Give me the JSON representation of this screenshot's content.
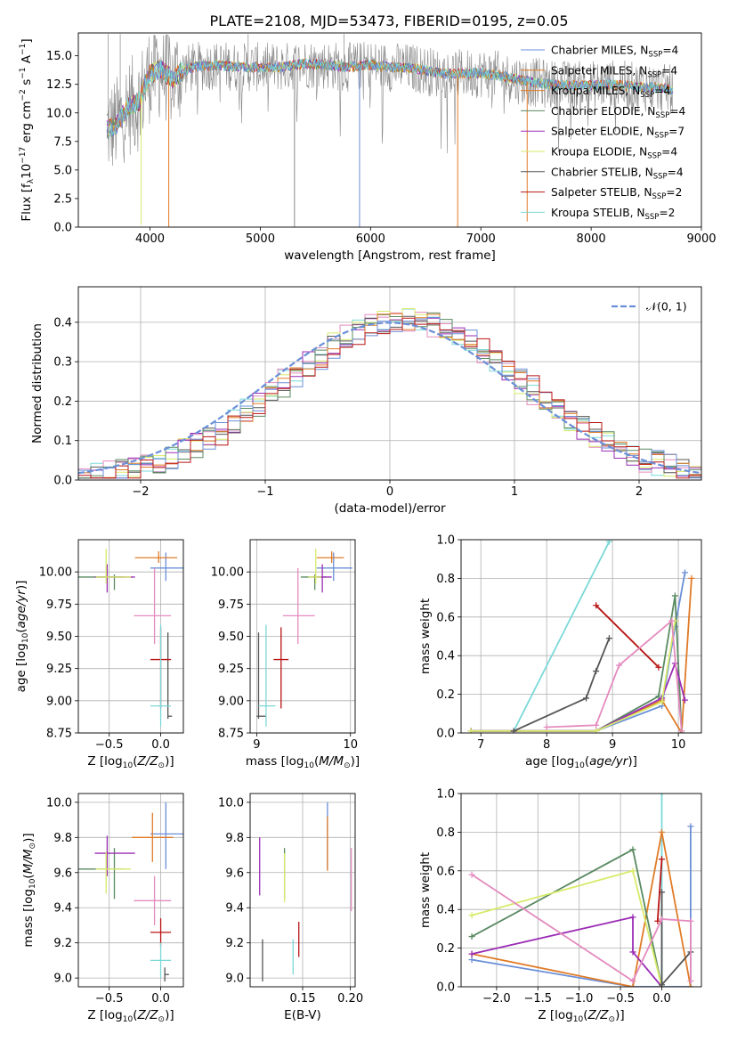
{
  "title": "PLATE=2108, MJD=53473, FIBERID=0195, z=0.05",
  "colors": [
    "#6a8fd8",
    "#e07b27",
    "#5a8a62",
    "#9b2db5",
    "#d8ea6a",
    "#555555",
    "#b81414",
    "#e48bbf",
    "#7bd8d8",
    "#888888"
  ],
  "chart_data": [
    {
      "id": "spectrum",
      "type": "line",
      "xlabel": "wavelength [Angstrom, rest frame]",
      "ylabel": "Flux [f_λ 10^-17 erg cm^-2 s^-1 A^-1]",
      "xlim": [
        3350,
        9000
      ],
      "ylim": [
        0,
        17
      ],
      "xticks": [
        4000,
        5000,
        6000,
        7000,
        8000,
        9000
      ],
      "yticks": [
        0.0,
        2.5,
        5.0,
        7.5,
        10.0,
        12.5,
        15.0
      ],
      "grid": false,
      "legend_position": "right",
      "legend": [
        {
          "label": "Chabrier MILES, N",
          "sub": "SSP",
          "suffix": "=4",
          "color": "#6a8fd8"
        },
        {
          "label": "Salpeter MILES, N",
          "sub": "SSP",
          "suffix": "=4",
          "color": "#e07b27"
        },
        {
          "label": "Kroupa MILES, N",
          "sub": "SSP",
          "suffix": "=4",
          "color": "#e07b27"
        },
        {
          "label": "Chabrier ELODIE, N",
          "sub": "SSP",
          "suffix": "=4",
          "color": "#5a8a62"
        },
        {
          "label": "Salpeter ELODIE, N",
          "sub": "SSP",
          "suffix": "=7",
          "color": "#9b2db5"
        },
        {
          "label": "Kroupa ELODIE, N",
          "sub": "SSP",
          "suffix": "=4",
          "color": "#d8ea6a"
        },
        {
          "label": "Chabrier STELIB, N",
          "sub": "SSP",
          "suffix": "=4",
          "color": "#555555"
        },
        {
          "label": "Salpeter STELIB, N",
          "sub": "SSP",
          "suffix": "=2",
          "color": "#b81414"
        },
        {
          "label": "Kroupa STELIB, N",
          "sub": "SSP",
          "suffix": "=2",
          "color": "#7bd8d8"
        }
      ],
      "series_shape": {
        "wavelength": [
          3600,
          3700,
          3800,
          3900,
          4000,
          4100,
          4200,
          4300,
          4400,
          4600,
          4800,
          5000,
          5200,
          5400,
          5600,
          5800,
          6000,
          6200,
          6400,
          6600,
          6800,
          7000,
          7200,
          7400,
          7600,
          7800,
          8000,
          8200,
          8400,
          8600,
          8750
        ],
        "flux": [
          8.5,
          9.0,
          10.5,
          11.0,
          13.5,
          13.8,
          13.0,
          13.7,
          14.0,
          14.2,
          14.0,
          14.0,
          14.0,
          14.3,
          14.2,
          14.0,
          14.2,
          14.0,
          13.9,
          13.5,
          13.4,
          13.5,
          13.2,
          12.8,
          12.5,
          12.4,
          12.4,
          12.5,
          12.3,
          12.2,
          12.0
        ]
      },
      "spikes": [
        {
          "x": 3920,
          "y": 0.2,
          "color": "#d8ea6a"
        },
        {
          "x": 4170,
          "y": 0.0,
          "color": "#e07b27"
        },
        {
          "x": 5310,
          "y": 0.0,
          "color": "#888888"
        },
        {
          "x": 5900,
          "y": 0.0,
          "color": "#6a8fd8"
        },
        {
          "x": 6790,
          "y": 0.0,
          "color": "#e07b27"
        },
        {
          "x": 7420,
          "y": 0.5,
          "color": "#e07b27"
        }
      ]
    },
    {
      "id": "residuals",
      "type": "step",
      "xlabel": "(data-model)/error",
      "ylabel": "Normed distribution",
      "xlim": [
        -2.5,
        2.5
      ],
      "ylim": [
        0,
        0.49
      ],
      "xticks": [
        -2,
        -1,
        0,
        1,
        2
      ],
      "yticks": [
        0.0,
        0.1,
        0.2,
        0.3,
        0.4
      ],
      "grid": true,
      "legend_position": "top-right",
      "legend": [
        {
          "label": "𝒩(0, 1)",
          "color": "#6a8fd8",
          "dashed": true
        }
      ],
      "bins_from": -2.5,
      "bin_width": 0.1
    },
    {
      "id": "age_vs_Z",
      "type": "errorbar",
      "xlabel": "Z [log10(Z/Z⊙)]",
      "ylabel": "age [log10(age/yr)]",
      "xlim": [
        -0.8,
        0.22
      ],
      "ylim": [
        8.75,
        10.25
      ],
      "xticks": [
        -0.5,
        0.0
      ],
      "yticks": [
        8.75,
        9.0,
        9.25,
        9.5,
        9.75,
        10.0
      ],
      "grid": true,
      "points": [
        {
          "x": 0.05,
          "y": 10.03,
          "xe": [
            0.15,
            0.18
          ],
          "ye": [
            0.1,
            0.12
          ],
          "color": "#6a8fd8"
        },
        {
          "x": -0.02,
          "y": 10.11,
          "xe": [
            0.23,
            0.18
          ],
          "ye": [
            0.04,
            0.05
          ],
          "color": "#e07b27"
        },
        {
          "x": -0.45,
          "y": 9.96,
          "xe": [
            0.35,
            0.1
          ],
          "ye": [
            0.1,
            0.02
          ],
          "color": "#5a8a62"
        },
        {
          "x": -0.52,
          "y": 9.96,
          "xe": [
            0.12,
            0.27
          ],
          "ye": [
            0.12,
            0.1
          ],
          "color": "#9b2db5"
        },
        {
          "x": -0.53,
          "y": 9.96,
          "xe": [
            0.1,
            0.24
          ],
          "ye": [
            0.05,
            0.22
          ],
          "color": "#d8ea6a"
        },
        {
          "x": 0.07,
          "y": 8.88,
          "xe": [
            0.0,
            0.04
          ],
          "ye": [
            0.02,
            0.65
          ],
          "color": "#555555"
        },
        {
          "x": 0.0,
          "y": 9.32,
          "xe": [
            0.1,
            0.1
          ],
          "ye": [
            0.38,
            0.25
          ],
          "color": "#b81414"
        },
        {
          "x": -0.06,
          "y": 9.66,
          "xe": [
            0.2,
            0.16
          ],
          "ye": [
            0.22,
            0.37
          ],
          "color": "#e48bbf"
        },
        {
          "x": 0.0,
          "y": 8.96,
          "xe": [
            0.1,
            0.1
          ],
          "ye": [
            0.16,
            0.63
          ],
          "color": "#7bd8d8"
        }
      ]
    },
    {
      "id": "age_vs_mass",
      "type": "errorbar",
      "xlabel": "mass [log10(M/M⊙)]",
      "ylabel": "",
      "xlim": [
        8.93,
        10.05
      ],
      "ylim": [
        8.75,
        10.25
      ],
      "xticks": [
        9,
        10
      ],
      "yticks": [
        8.75,
        9.0,
        9.25,
        9.5,
        9.75,
        10.0
      ],
      "grid": true,
      "points": [
        {
          "x": 9.82,
          "y": 10.03,
          "xe": [
            0.18,
            0.2
          ],
          "ye": [
            0.1,
            0.12
          ],
          "color": "#6a8fd8"
        },
        {
          "x": 9.8,
          "y": 10.11,
          "xe": [
            0.16,
            0.13
          ],
          "ye": [
            0.04,
            0.05
          ],
          "color": "#e07b27"
        },
        {
          "x": 9.62,
          "y": 9.96,
          "xe": [
            0.15,
            0.12
          ],
          "ye": [
            0.1,
            0.02
          ],
          "color": "#5a8a62"
        },
        {
          "x": 9.7,
          "y": 9.96,
          "xe": [
            0.1,
            0.1
          ],
          "ye": [
            0.12,
            0.1
          ],
          "color": "#9b2db5"
        },
        {
          "x": 9.63,
          "y": 9.96,
          "xe": [
            0.08,
            0.06
          ],
          "ye": [
            0.05,
            0.22
          ],
          "color": "#d8ea6a"
        },
        {
          "x": 9.02,
          "y": 8.88,
          "xe": [
            0.02,
            0.08
          ],
          "ye": [
            0.02,
            0.65
          ],
          "color": "#555555"
        },
        {
          "x": 9.26,
          "y": 9.32,
          "xe": [
            0.08,
            0.08
          ],
          "ye": [
            0.38,
            0.25
          ],
          "color": "#b81414"
        },
        {
          "x": 9.44,
          "y": 9.66,
          "xe": [
            0.16,
            0.18
          ],
          "ye": [
            0.22,
            0.37
          ],
          "color": "#e48bbf"
        },
        {
          "x": 9.1,
          "y": 8.96,
          "xe": [
            0.08,
            0.1
          ],
          "ye": [
            0.16,
            0.63
          ],
          "color": "#7bd8d8"
        }
      ]
    },
    {
      "id": "massweight_vs_age",
      "type": "line",
      "xlabel": "age [log10(age/yr)]",
      "ylabel": "mass weight",
      "xlim": [
        6.7,
        10.35
      ],
      "ylim": [
        0,
        1.0
      ],
      "xticks": [
        7,
        8,
        9,
        10
      ],
      "yticks": [
        0.0,
        0.2,
        0.4,
        0.6,
        0.8,
        1.0
      ],
      "grid": true,
      "series": [
        {
          "color": "#7bd8d8",
          "x": [
            7.5,
            8.95
          ],
          "y": [
            0.01,
            0.99
          ]
        },
        {
          "color": "#6a8fd8",
          "x": [
            6.85,
            8.75,
            9.75,
            9.95,
            10.1
          ],
          "y": [
            0.01,
            0.01,
            0.14,
            0.55,
            0.83
          ]
        },
        {
          "color": "#e07b27",
          "x": [
            6.85,
            8.75,
            9.75,
            10.05,
            10.2
          ],
          "y": [
            0.01,
            0.01,
            0.17,
            0.0,
            0.8
          ]
        },
        {
          "color": "#5a8a62",
          "x": [
            6.85,
            8.75,
            9.7,
            9.95,
            10.05
          ],
          "y": [
            0.01,
            0.01,
            0.19,
            0.71,
            0.0
          ]
        },
        {
          "color": "#9b2db5",
          "x": [
            6.85,
            8.75,
            9.75,
            9.95,
            10.1
          ],
          "y": [
            0.01,
            0.01,
            0.18,
            0.36,
            0.17
          ]
        },
        {
          "color": "#d8ea6a",
          "x": [
            6.85,
            8.75,
            9.75,
            9.95
          ],
          "y": [
            0.01,
            0.01,
            0.16,
            0.58
          ]
        },
        {
          "color": "#555555",
          "x": [
            7.5,
            8.6,
            8.75,
            8.95
          ],
          "y": [
            0.01,
            0.18,
            0.32,
            0.49
          ]
        },
        {
          "color": "#b81414",
          "x": [
            8.75,
            9.7
          ],
          "y": [
            0.66,
            0.34
          ]
        },
        {
          "color": "#e48bbf",
          "x": [
            8.0,
            8.75,
            9.1,
            9.9,
            10.05
          ],
          "y": [
            0.03,
            0.04,
            0.35,
            0.58,
            0.01
          ]
        }
      ]
    },
    {
      "id": "mass_vs_Z",
      "type": "errorbar",
      "xlabel": "Z [log10(Z/Z⊙)]",
      "ylabel": "mass [log10(M/M⊙)]",
      "xlim": [
        -0.8,
        0.22
      ],
      "ylim": [
        8.95,
        10.05
      ],
      "xticks": [
        -0.5,
        0.0
      ],
      "yticks": [
        9.0,
        9.2,
        9.4,
        9.6,
        9.8,
        10.0
      ],
      "grid": true,
      "points": [
        {
          "x": 0.05,
          "y": 9.82,
          "xe": [
            0.15,
            0.18
          ],
          "ye": [
            0.2,
            0.18
          ],
          "color": "#6a8fd8"
        },
        {
          "x": -0.08,
          "y": 9.8,
          "xe": [
            0.2,
            0.2
          ],
          "ye": [
            0.14,
            0.14
          ],
          "color": "#e07b27"
        },
        {
          "x": -0.45,
          "y": 9.62,
          "xe": [
            0.35,
            0.1
          ],
          "ye": [
            0.17,
            0.12
          ],
          "color": "#5a8a62"
        },
        {
          "x": -0.52,
          "y": 9.71,
          "xe": [
            0.12,
            0.27
          ],
          "ye": [
            0.13,
            0.1
          ],
          "color": "#9b2db5"
        },
        {
          "x": -0.53,
          "y": 9.62,
          "xe": [
            0.1,
            0.24
          ],
          "ye": [
            0.14,
            0.1
          ],
          "color": "#d8ea6a"
        },
        {
          "x": 0.04,
          "y": 9.02,
          "xe": [
            0.0,
            0.04
          ],
          "ye": [
            0.04,
            0.04
          ],
          "color": "#555555"
        },
        {
          "x": 0.0,
          "y": 9.26,
          "xe": [
            0.1,
            0.1
          ],
          "ye": [
            0.08,
            0.08
          ],
          "color": "#b81414"
        },
        {
          "x": -0.06,
          "y": 9.44,
          "xe": [
            0.2,
            0.16
          ],
          "ye": [
            0.14,
            0.14
          ],
          "color": "#e48bbf"
        },
        {
          "x": 0.0,
          "y": 9.1,
          "xe": [
            0.1,
            0.1
          ],
          "ye": [
            0.1,
            0.1
          ],
          "color": "#7bd8d8"
        }
      ]
    },
    {
      "id": "mass_vs_ebv",
      "type": "errorbar",
      "xlabel": "E(B-V)",
      "ylabel": "",
      "xlim": [
        0.095,
        0.205
      ],
      "ylim": [
        8.95,
        10.05
      ],
      "xticks": [
        0.15,
        0.2
      ],
      "yticks": [
        9.0,
        9.2,
        9.4,
        9.6,
        9.8,
        10.0
      ],
      "grid": true,
      "points": [
        {
          "x": 0.176,
          "y": 9.82,
          "xe": [
            0,
            0
          ],
          "ye": [
            0.2,
            0.18
          ],
          "color": "#6a8fd8"
        },
        {
          "x": 0.176,
          "y": 9.8,
          "xe": [
            0,
            0
          ],
          "ye": [
            0.19,
            0.12
          ],
          "color": "#e07b27"
        },
        {
          "x": 0.131,
          "y": 9.62,
          "xe": [
            0,
            0
          ],
          "ye": [
            0.17,
            0.12
          ],
          "color": "#5a8a62"
        },
        {
          "x": 0.105,
          "y": 9.64,
          "xe": [
            0,
            0
          ],
          "ye": [
            0.17,
            0.16
          ],
          "color": "#9b2db5"
        },
        {
          "x": 0.131,
          "y": 9.59,
          "xe": [
            0,
            0
          ],
          "ye": [
            0.16,
            0.12
          ],
          "color": "#d8ea6a"
        },
        {
          "x": 0.108,
          "y": 9.1,
          "xe": [
            0,
            0
          ],
          "ye": [
            0.12,
            0.12
          ],
          "color": "#555555"
        },
        {
          "x": 0.146,
          "y": 9.22,
          "xe": [
            0,
            0
          ],
          "ye": [
            0.1,
            0.1
          ],
          "color": "#b81414"
        },
        {
          "x": 0.201,
          "y": 9.58,
          "xe": [
            0,
            0
          ],
          "ye": [
            0.2,
            0.16
          ],
          "color": "#e48bbf"
        },
        {
          "x": 0.14,
          "y": 9.12,
          "xe": [
            0,
            0
          ],
          "ye": [
            0.1,
            0.1
          ],
          "color": "#7bd8d8"
        }
      ]
    },
    {
      "id": "massweight_vs_Z",
      "type": "line",
      "xlabel": "Z [log10(Z/Z⊙)]",
      "ylabel": "mass weight",
      "xlim": [
        -2.43,
        0.48
      ],
      "ylim": [
        0,
        1.0
      ],
      "xticks": [
        -2.0,
        -1.5,
        -1.0,
        -0.5,
        0.0
      ],
      "yticks": [
        0.0,
        0.2,
        0.4,
        0.6,
        0.8,
        1.0
      ],
      "grid": true,
      "series": [
        {
          "color": "#7bd8d8",
          "x": [
            0.0,
            0.0
          ],
          "y": [
            0.0,
            1.0
          ]
        },
        {
          "color": "#6a8fd8",
          "x": [
            -2.3,
            -0.35,
            0.35,
            0.35
          ],
          "y": [
            0.14,
            0.0,
            0.0,
            0.83
          ]
        },
        {
          "color": "#e07b27",
          "x": [
            -2.3,
            -0.35,
            0.0,
            0.35
          ],
          "y": [
            0.17,
            0.0,
            0.8,
            0.0
          ]
        },
        {
          "color": "#5a8a62",
          "x": [
            -2.3,
            -0.35,
            0.0
          ],
          "y": [
            0.26,
            0.71,
            0.0
          ]
        },
        {
          "color": "#9b2db5",
          "x": [
            -2.3,
            -0.35,
            -0.35,
            0.0
          ],
          "y": [
            0.17,
            0.36,
            0.18,
            0.0
          ]
        },
        {
          "color": "#d8ea6a",
          "x": [
            -2.3,
            -0.35,
            0.0
          ],
          "y": [
            0.37,
            0.6,
            0.0
          ]
        },
        {
          "color": "#555555",
          "x": [
            0.0,
            0.0,
            0.35
          ],
          "y": [
            0.49,
            0.01,
            0.18
          ]
        },
        {
          "color": "#b81414",
          "x": [
            0.0,
            -0.05
          ],
          "y": [
            0.66,
            0.34
          ]
        },
        {
          "color": "#e48bbf",
          "x": [
            -2.3,
            -0.35,
            0.0,
            0.35,
            0.35
          ],
          "y": [
            0.58,
            0.03,
            0.35,
            0.34,
            0.03
          ]
        }
      ]
    }
  ]
}
